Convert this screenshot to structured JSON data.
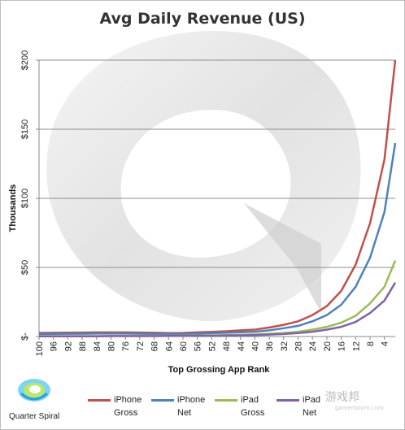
{
  "chart_data": {
    "type": "line",
    "title": "Avg Daily Revenue (US)",
    "xlabel": "Top Grossing App Rank",
    "ylabel": "Thousands",
    "ylim": [
      0,
      200
    ],
    "y_ticks": [
      0,
      50,
      100,
      150,
      200
    ],
    "y_tick_labels": [
      "$-",
      "$50",
      "$100",
      "$150",
      "$200"
    ],
    "grid": true,
    "legend_position": "bottom",
    "x_tick_labels": [
      "100",
      "96",
      "92",
      "88",
      "84",
      "80",
      "76",
      "72",
      "68",
      "64",
      "60",
      "56",
      "52",
      "48",
      "44",
      "40",
      "36",
      "32",
      "28",
      "24",
      "20",
      "16",
      "12",
      "8",
      "4"
    ],
    "x": [
      100,
      96,
      92,
      88,
      84,
      80,
      76,
      72,
      68,
      64,
      60,
      56,
      52,
      48,
      44,
      40,
      36,
      32,
      28,
      24,
      20,
      16,
      12,
      8,
      4,
      1
    ],
    "series": [
      {
        "name": "iPhone Gross",
        "color": "#c0504d",
        "values": [
          2.6,
          2.7,
          2.8,
          2.9,
          3.0,
          3.0,
          3.0,
          2.9,
          2.7,
          2.5,
          2.6,
          3.0,
          3.4,
          3.8,
          4.5,
          5.0,
          6.5,
          8.5,
          11.0,
          15.5,
          22.0,
          33.0,
          52.0,
          82.0,
          128.0,
          200.0
        ]
      },
      {
        "name": "iPhone Net",
        "color": "#4f81bd",
        "values": [
          1.8,
          1.9,
          2.0,
          2.0,
          2.1,
          2.1,
          2.1,
          2.0,
          1.9,
          1.8,
          1.8,
          2.1,
          2.4,
          2.7,
          3.1,
          3.5,
          4.5,
          6.0,
          7.7,
          11.0,
          15.5,
          23.0,
          36.0,
          57.0,
          90.0,
          140.0
        ]
      },
      {
        "name": "iPad Gross",
        "color": "#9bbb59",
        "values": [
          0.3,
          0.3,
          0.3,
          0.3,
          0.3,
          0.4,
          0.4,
          0.4,
          0.5,
          0.5,
          0.6,
          0.7,
          0.8,
          1.0,
          1.2,
          1.5,
          2.0,
          2.6,
          3.5,
          5.0,
          7.0,
          10.0,
          15.0,
          24.0,
          36.0,
          55.0
        ]
      },
      {
        "name": "iPad Net",
        "color": "#8064a2",
        "values": [
          0.2,
          0.2,
          0.2,
          0.2,
          0.2,
          0.3,
          0.3,
          0.3,
          0.3,
          0.4,
          0.4,
          0.5,
          0.6,
          0.7,
          0.8,
          1.0,
          1.4,
          1.8,
          2.5,
          3.5,
          5.0,
          7.0,
          10.5,
          17.0,
          26.0,
          39.0
        ]
      }
    ]
  },
  "legend": [
    {
      "label": "iPhone\nGross",
      "color": "#c0504d"
    },
    {
      "label": "iPhone\nNet",
      "color": "#4f81bd"
    },
    {
      "label": "iPad\nGross",
      "color": "#9bbb59"
    },
    {
      "label": "iPad\nNet",
      "color": "#8064a2"
    }
  ],
  "logo_text": "Quarter Spiral",
  "watermark": "游戏邦",
  "watermark_sub": "gamerboom.com"
}
